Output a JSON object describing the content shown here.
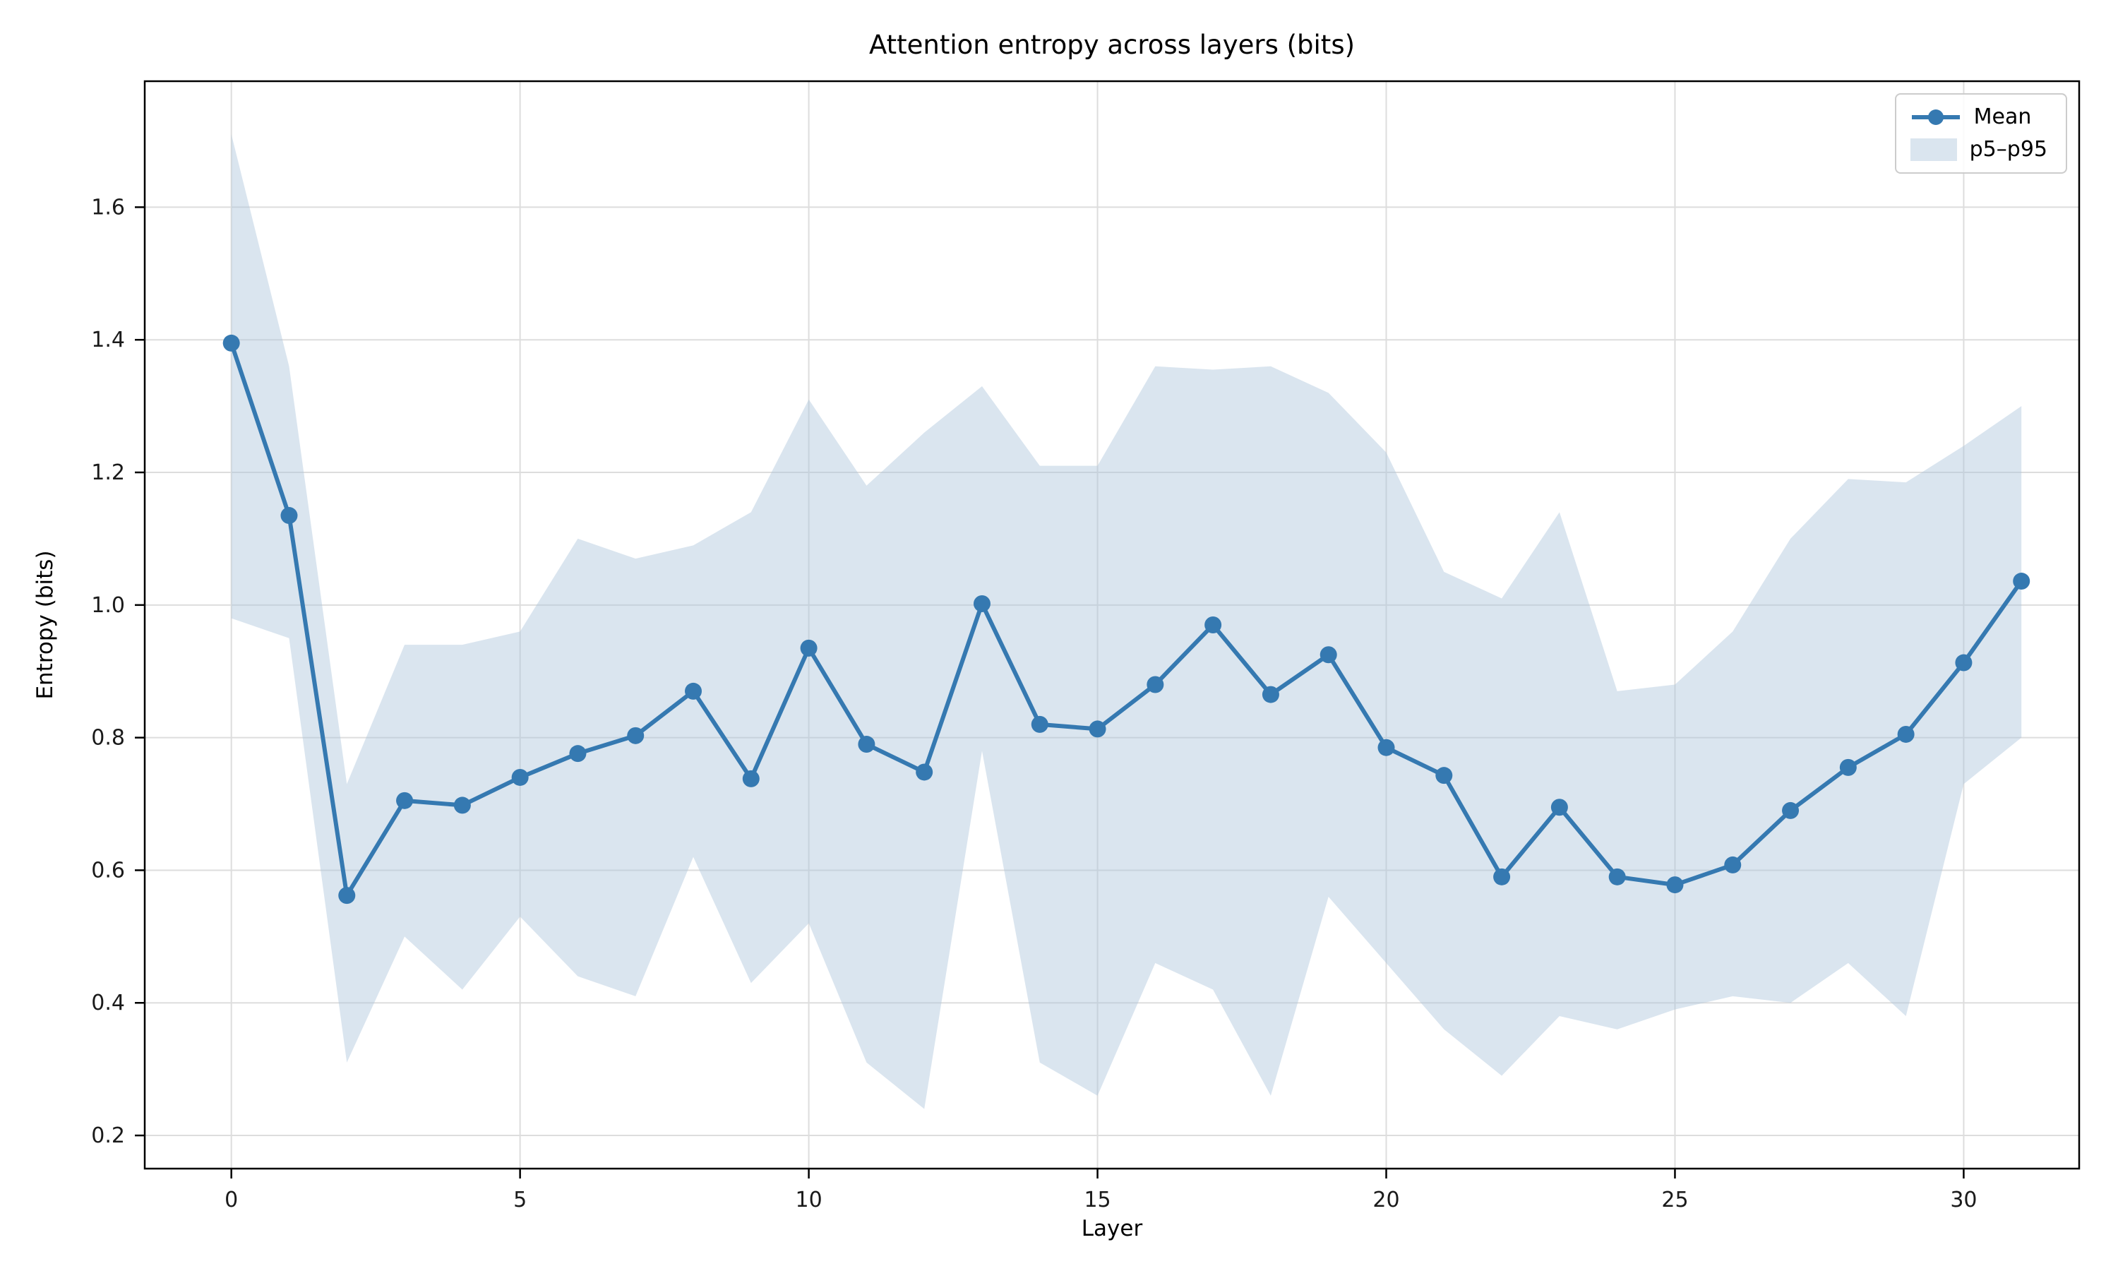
{
  "chart": {
    "title": "Attention entropy across layers (bits)",
    "xlabel": "Layer",
    "ylabel": "Entropy (bits)",
    "legend": [
      {
        "label": "Mean",
        "type": "line"
      },
      {
        "label": "p5–p95",
        "type": "patch"
      }
    ]
  },
  "chart_data": {
    "type": "line",
    "title": "Attention entropy across layers (bits)",
    "xlabel": "Layer",
    "ylabel": "Entropy (bits)",
    "x": [
      0,
      1,
      2,
      3,
      4,
      5,
      6,
      7,
      8,
      9,
      10,
      11,
      12,
      13,
      14,
      15,
      16,
      17,
      18,
      19,
      20,
      21,
      22,
      23,
      24,
      25,
      26,
      27,
      28,
      29,
      30,
      31
    ],
    "series": [
      {
        "name": "Mean",
        "values": [
          1.395,
          1.135,
          0.562,
          0.705,
          0.698,
          0.74,
          0.776,
          0.803,
          0.87,
          0.738,
          0.935,
          0.79,
          0.748,
          1.002,
          0.82,
          0.813,
          0.88,
          0.97,
          0.865,
          0.925,
          0.785,
          0.743,
          0.59,
          0.695,
          0.59,
          0.578,
          0.608,
          0.69,
          0.755,
          0.805,
          0.913,
          1.036
        ]
      },
      {
        "name": "p5",
        "values": [
          0.98,
          0.95,
          0.31,
          0.5,
          0.42,
          0.53,
          0.44,
          0.41,
          0.62,
          0.43,
          0.52,
          0.31,
          0.24,
          0.78,
          0.31,
          0.26,
          0.46,
          0.42,
          0.26,
          0.56,
          0.46,
          0.36,
          0.29,
          0.38,
          0.36,
          0.39,
          0.41,
          0.4,
          0.46,
          0.38,
          0.73,
          0.8
        ]
      },
      {
        "name": "p95",
        "values": [
          1.71,
          1.36,
          0.73,
          0.94,
          0.94,
          0.96,
          1.1,
          1.07,
          1.09,
          1.14,
          1.31,
          1.18,
          1.26,
          1.33,
          1.21,
          1.21,
          1.36,
          1.355,
          1.36,
          1.32,
          1.23,
          1.05,
          1.01,
          1.14,
          0.87,
          0.88,
          0.96,
          1.1,
          1.19,
          1.185,
          1.24,
          1.3
        ]
      }
    ],
    "band": {
      "label": "p5–p95",
      "lower_series": "p5",
      "upper_series": "p95"
    },
    "xlim": [
      -1.5,
      32.0
    ],
    "ylim": [
      0.15,
      1.79
    ],
    "xticks": [
      0,
      5,
      10,
      15,
      20,
      25,
      30
    ],
    "yticks": [
      0.2,
      0.4,
      0.6,
      0.8,
      1.0,
      1.2,
      1.4,
      1.6
    ],
    "grid": true,
    "legend_position": "upper right",
    "colors": {
      "mean_line": "#3579b1",
      "marker": "#3579b1",
      "band_fill": "#aec6dc",
      "band_opacity": 0.45,
      "grid": "#dddddd",
      "spine": "#000000",
      "tick_text": "#1a1a1a"
    }
  }
}
